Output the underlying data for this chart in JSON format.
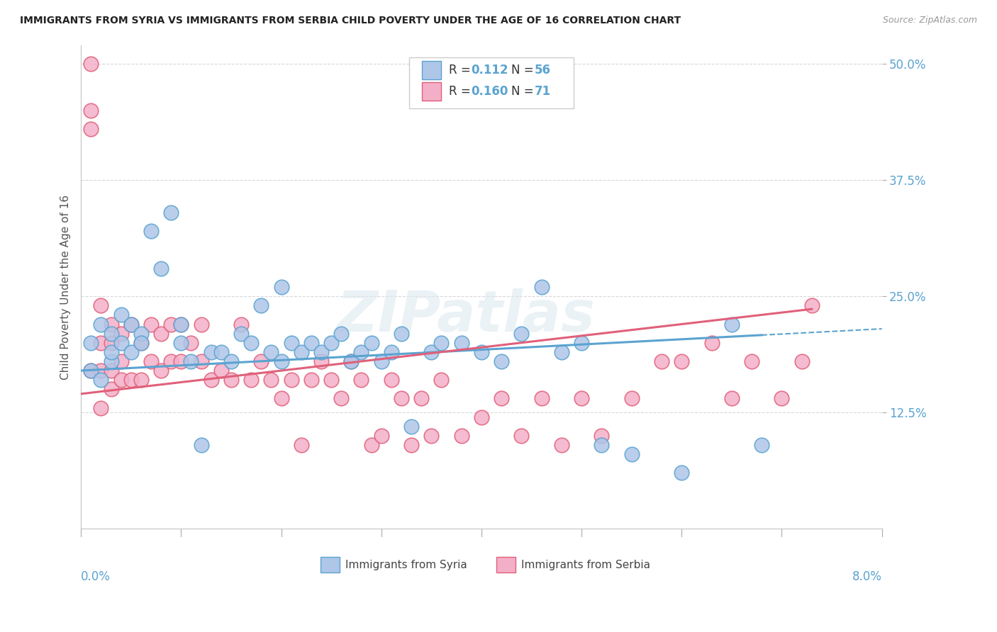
{
  "title": "IMMIGRANTS FROM SYRIA VS IMMIGRANTS FROM SERBIA CHILD POVERTY UNDER THE AGE OF 16 CORRELATION CHART",
  "source": "Source: ZipAtlas.com",
  "ylabel": "Child Poverty Under the Age of 16",
  "ytick_labels": [
    "12.5%",
    "25.0%",
    "37.5%",
    "50.0%"
  ],
  "ytick_values": [
    0.125,
    0.25,
    0.375,
    0.5
  ],
  "xlim": [
    0.0,
    0.08
  ],
  "ylim": [
    0.0,
    0.52
  ],
  "syria_fill_color": "#aec6e8",
  "syria_edge_color": "#5ba3d0",
  "serbia_fill_color": "#f4afc8",
  "serbia_edge_color": "#e0607a",
  "syria_trend_color": "#5ba3d0",
  "serbia_trend_color": "#e0607a",
  "legend_blue": "#5ba3d0",
  "legend_r_syria": "0.112",
  "legend_n_syria": "56",
  "legend_r_serbia": "0.160",
  "legend_n_serbia": "71",
  "grid_color": "#d8d8d8",
  "background_color": "#ffffff",
  "watermark": "ZIPatlas",
  "syria_x": [
    0.001,
    0.001,
    0.002,
    0.002,
    0.003,
    0.003,
    0.003,
    0.004,
    0.004,
    0.005,
    0.005,
    0.006,
    0.006,
    0.007,
    0.008,
    0.009,
    0.01,
    0.01,
    0.011,
    0.012,
    0.013,
    0.014,
    0.015,
    0.016,
    0.017,
    0.018,
    0.019,
    0.02,
    0.02,
    0.021,
    0.022,
    0.023,
    0.024,
    0.025,
    0.026,
    0.027,
    0.028,
    0.029,
    0.03,
    0.031,
    0.032,
    0.033,
    0.035,
    0.036,
    0.038,
    0.04,
    0.042,
    0.044,
    0.046,
    0.048,
    0.05,
    0.052,
    0.055,
    0.06,
    0.065,
    0.068
  ],
  "syria_y": [
    0.2,
    0.17,
    0.22,
    0.16,
    0.21,
    0.18,
    0.19,
    0.23,
    0.2,
    0.22,
    0.19,
    0.21,
    0.2,
    0.32,
    0.28,
    0.34,
    0.2,
    0.22,
    0.18,
    0.09,
    0.19,
    0.19,
    0.18,
    0.21,
    0.2,
    0.24,
    0.19,
    0.26,
    0.18,
    0.2,
    0.19,
    0.2,
    0.19,
    0.2,
    0.21,
    0.18,
    0.19,
    0.2,
    0.18,
    0.19,
    0.21,
    0.11,
    0.19,
    0.2,
    0.2,
    0.19,
    0.18,
    0.21,
    0.26,
    0.19,
    0.2,
    0.09,
    0.08,
    0.06,
    0.22,
    0.09
  ],
  "serbia_x": [
    0.001,
    0.001,
    0.001,
    0.001,
    0.002,
    0.002,
    0.002,
    0.002,
    0.003,
    0.003,
    0.003,
    0.003,
    0.004,
    0.004,
    0.004,
    0.005,
    0.005,
    0.006,
    0.006,
    0.007,
    0.007,
    0.008,
    0.008,
    0.009,
    0.009,
    0.01,
    0.01,
    0.011,
    0.012,
    0.012,
    0.013,
    0.014,
    0.015,
    0.016,
    0.017,
    0.018,
    0.019,
    0.02,
    0.021,
    0.022,
    0.023,
    0.024,
    0.025,
    0.026,
    0.027,
    0.028,
    0.029,
    0.03,
    0.031,
    0.032,
    0.033,
    0.034,
    0.035,
    0.036,
    0.038,
    0.04,
    0.042,
    0.044,
    0.046,
    0.048,
    0.05,
    0.052,
    0.055,
    0.058,
    0.06,
    0.063,
    0.065,
    0.067,
    0.07,
    0.072,
    0.073
  ],
  "serbia_y": [
    0.5,
    0.45,
    0.43,
    0.17,
    0.24,
    0.2,
    0.17,
    0.13,
    0.22,
    0.2,
    0.17,
    0.15,
    0.21,
    0.18,
    0.16,
    0.22,
    0.16,
    0.2,
    0.16,
    0.22,
    0.18,
    0.21,
    0.17,
    0.22,
    0.18,
    0.22,
    0.18,
    0.2,
    0.22,
    0.18,
    0.16,
    0.17,
    0.16,
    0.22,
    0.16,
    0.18,
    0.16,
    0.14,
    0.16,
    0.09,
    0.16,
    0.18,
    0.16,
    0.14,
    0.18,
    0.16,
    0.09,
    0.1,
    0.16,
    0.14,
    0.09,
    0.14,
    0.1,
    0.16,
    0.1,
    0.12,
    0.14,
    0.1,
    0.14,
    0.09,
    0.14,
    0.1,
    0.14,
    0.18,
    0.18,
    0.2,
    0.14,
    0.18,
    0.14,
    0.18,
    0.24
  ]
}
